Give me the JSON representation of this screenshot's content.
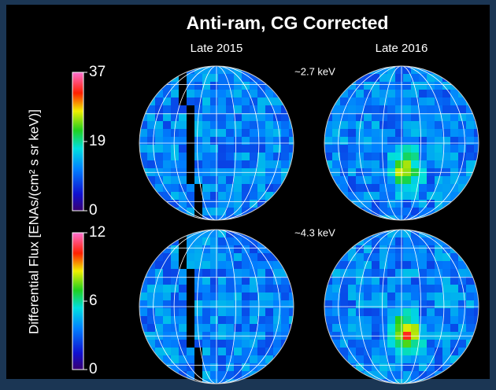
{
  "title": "Anti-ram, CG Corrected",
  "columns": [
    "Late 2015",
    "Late 2016"
  ],
  "rows": [
    {
      "energy": "~2.7 keV",
      "colorbar": {
        "ticks": [
          "37",
          "19",
          "0"
        ]
      }
    },
    {
      "energy": "~4.3 keV",
      "colorbar": {
        "ticks": [
          "12",
          "6",
          "0"
        ]
      }
    }
  ],
  "y_axis_label": "Differential Flux [ENAs/(cm² s sr keV)]"
}
